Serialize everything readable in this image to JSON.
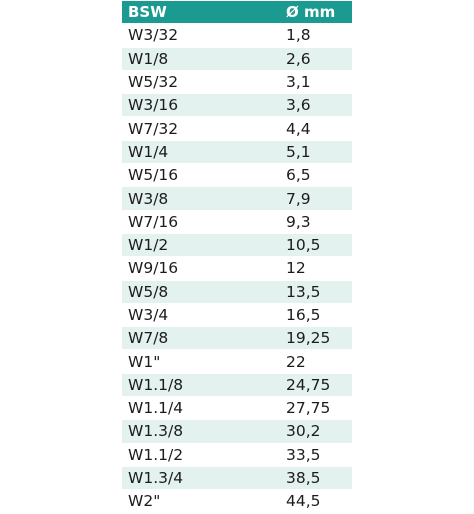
{
  "table": {
    "headers": [
      "BSW",
      "Ø mm"
    ],
    "rows": [
      [
        "W3/32",
        "1,8"
      ],
      [
        "W1/8",
        "2,6"
      ],
      [
        "W5/32",
        "3,1"
      ],
      [
        "W3/16",
        "3,6"
      ],
      [
        "W7/32",
        "4,4"
      ],
      [
        "W1/4",
        "5,1"
      ],
      [
        "W5/16",
        "6,5"
      ],
      [
        "W3/8",
        "7,9"
      ],
      [
        "W7/16",
        "9,3"
      ],
      [
        "W1/2",
        "10,5"
      ],
      [
        "W9/16",
        "12"
      ],
      [
        "W5/8",
        "13,5"
      ],
      [
        "W3/4",
        "16,5"
      ],
      [
        "W7/8",
        "19,25"
      ],
      [
        "W1\"",
        "22"
      ],
      [
        "W1.1/8",
        "24,75"
      ],
      [
        "W1.1/4",
        "27,75"
      ],
      [
        "W1.3/8",
        "30,2"
      ],
      [
        "W1.1/2",
        "33,5"
      ],
      [
        "W1.3/4",
        "38,5"
      ],
      [
        "W2\"",
        "44,5"
      ]
    ]
  },
  "colors": {
    "header_bg": "#1a9a90",
    "stripe_bg": "#e3f1ef",
    "plain_bg": "#ffffff"
  }
}
